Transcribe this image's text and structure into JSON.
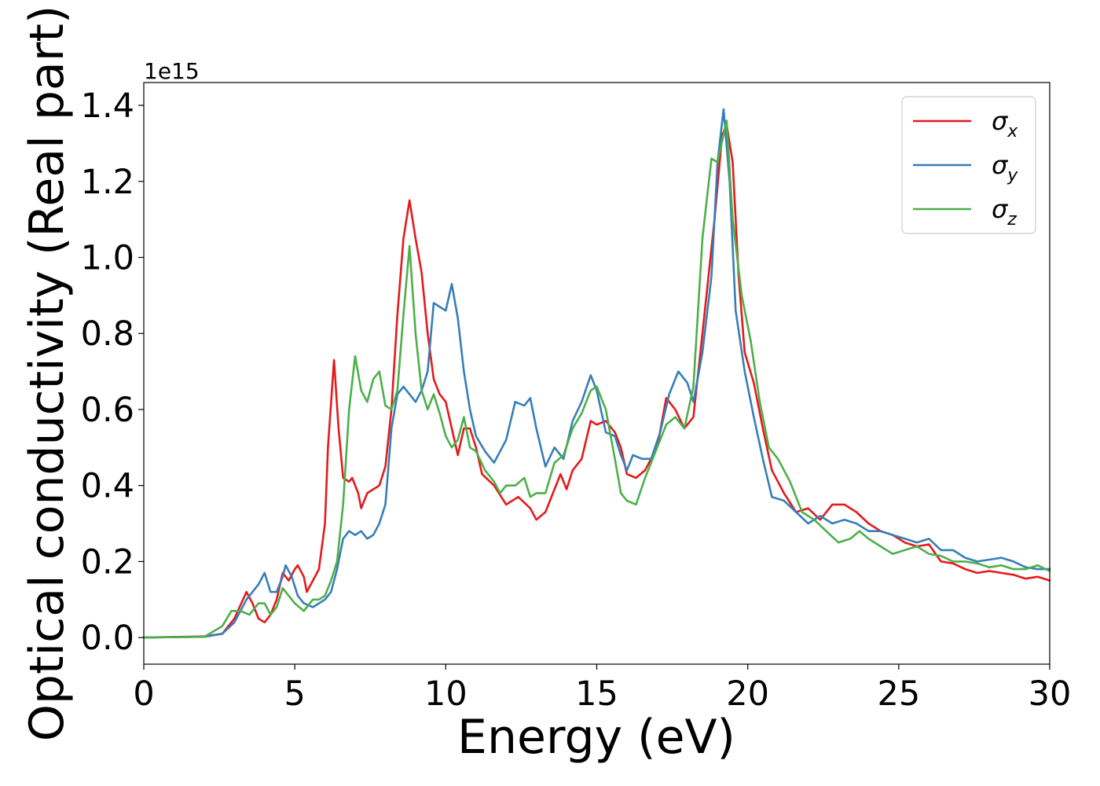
{
  "chart_data": {
    "type": "line",
    "xlabel": "Energy (eV)",
    "ylabel": "Optical conductivity (Real part)",
    "offset_text": "1e15",
    "xlim": [
      0,
      30
    ],
    "ylim": [
      -0.07,
      1.46
    ],
    "xticks": [
      0,
      5,
      10,
      15,
      20,
      25,
      30
    ],
    "xtick_labels": [
      "0",
      "5",
      "10",
      "15",
      "20",
      "25",
      "30"
    ],
    "yticks": [
      0.0,
      0.2,
      0.4,
      0.6,
      0.8,
      1.0,
      1.2,
      1.4
    ],
    "ytick_labels": [
      "0.0",
      "0.2",
      "0.4",
      "0.6",
      "0.8",
      "1.0",
      "1.2",
      "1.4"
    ],
    "legend_position": "top-right",
    "grid": false,
    "series": [
      {
        "name": "σx",
        "symbol": "σ",
        "subscript": "x",
        "color": "#e41a1c",
        "points": [
          [
            0,
            0
          ],
          [
            2,
            0.003
          ],
          [
            2.6,
            0.01
          ],
          [
            3,
            0.05
          ],
          [
            3.4,
            0.12
          ],
          [
            3.6,
            0.09
          ],
          [
            3.8,
            0.05
          ],
          [
            4,
            0.04
          ],
          [
            4.2,
            0.06
          ],
          [
            4.4,
            0.1
          ],
          [
            4.6,
            0.17
          ],
          [
            4.8,
            0.15
          ],
          [
            5,
            0.18
          ],
          [
            5.1,
            0.19
          ],
          [
            5.3,
            0.16
          ],
          [
            5.4,
            0.12
          ],
          [
            5.6,
            0.15
          ],
          [
            5.8,
            0.18
          ],
          [
            6,
            0.3
          ],
          [
            6.1,
            0.5
          ],
          [
            6.3,
            0.73
          ],
          [
            6.45,
            0.55
          ],
          [
            6.6,
            0.42
          ],
          [
            6.8,
            0.41
          ],
          [
            6.9,
            0.42
          ],
          [
            7.1,
            0.38
          ],
          [
            7.2,
            0.34
          ],
          [
            7.4,
            0.38
          ],
          [
            7.6,
            0.39
          ],
          [
            7.8,
            0.4
          ],
          [
            8,
            0.45
          ],
          [
            8.2,
            0.6
          ],
          [
            8.4,
            0.85
          ],
          [
            8.6,
            1.05
          ],
          [
            8.8,
            1.15
          ],
          [
            9,
            1.05
          ],
          [
            9.2,
            0.96
          ],
          [
            9.4,
            0.8
          ],
          [
            9.6,
            0.68
          ],
          [
            9.8,
            0.64
          ],
          [
            10,
            0.62
          ],
          [
            10.2,
            0.55
          ],
          [
            10.4,
            0.48
          ],
          [
            10.6,
            0.55
          ],
          [
            10.8,
            0.55
          ],
          [
            11,
            0.5
          ],
          [
            11.2,
            0.43
          ],
          [
            11.6,
            0.4
          ],
          [
            12,
            0.35
          ],
          [
            12.4,
            0.37
          ],
          [
            12.8,
            0.34
          ],
          [
            13,
            0.31
          ],
          [
            13.3,
            0.33
          ],
          [
            13.6,
            0.39
          ],
          [
            13.8,
            0.43
          ],
          [
            14,
            0.39
          ],
          [
            14.2,
            0.44
          ],
          [
            14.5,
            0.47
          ],
          [
            14.8,
            0.57
          ],
          [
            15,
            0.56
          ],
          [
            15.3,
            0.57
          ],
          [
            15.6,
            0.54
          ],
          [
            15.8,
            0.5
          ],
          [
            16,
            0.43
          ],
          [
            16.3,
            0.42
          ],
          [
            16.6,
            0.44
          ],
          [
            17,
            0.5
          ],
          [
            17.3,
            0.63
          ],
          [
            17.6,
            0.6
          ],
          [
            17.9,
            0.55
          ],
          [
            18.2,
            0.58
          ],
          [
            18.5,
            0.8
          ],
          [
            18.9,
            1.1
          ],
          [
            19.15,
            1.32
          ],
          [
            19.3,
            1.35
          ],
          [
            19.5,
            1.25
          ],
          [
            19.7,
            0.95
          ],
          [
            19.9,
            0.75
          ],
          [
            20.2,
            0.67
          ],
          [
            20.5,
            0.55
          ],
          [
            20.8,
            0.44
          ],
          [
            21.2,
            0.38
          ],
          [
            21.6,
            0.33
          ],
          [
            22,
            0.34
          ],
          [
            22.4,
            0.31
          ],
          [
            22.8,
            0.35
          ],
          [
            23.2,
            0.35
          ],
          [
            23.6,
            0.33
          ],
          [
            24,
            0.3
          ],
          [
            24.4,
            0.28
          ],
          [
            24.8,
            0.27
          ],
          [
            25.2,
            0.25
          ],
          [
            25.6,
            0.24
          ],
          [
            26,
            0.245
          ],
          [
            26.4,
            0.2
          ],
          [
            26.8,
            0.195
          ],
          [
            27.2,
            0.18
          ],
          [
            27.6,
            0.17
          ],
          [
            28,
            0.175
          ],
          [
            28.4,
            0.17
          ],
          [
            28.8,
            0.165
          ],
          [
            29.2,
            0.155
          ],
          [
            29.6,
            0.16
          ],
          [
            30,
            0.15
          ]
        ]
      },
      {
        "name": "σy",
        "symbol": "σ",
        "subscript": "y",
        "color": "#377eb8",
        "points": [
          [
            0,
            0
          ],
          [
            2,
            0.002
          ],
          [
            2.6,
            0.01
          ],
          [
            3,
            0.04
          ],
          [
            3.4,
            0.1
          ],
          [
            3.6,
            0.12
          ],
          [
            3.8,
            0.14
          ],
          [
            4,
            0.17
          ],
          [
            4.2,
            0.12
          ],
          [
            4.4,
            0.12
          ],
          [
            4.6,
            0.16
          ],
          [
            4.7,
            0.19
          ],
          [
            4.9,
            0.16
          ],
          [
            5.1,
            0.11
          ],
          [
            5.3,
            0.09
          ],
          [
            5.6,
            0.08
          ],
          [
            5.8,
            0.09
          ],
          [
            6,
            0.1
          ],
          [
            6.2,
            0.12
          ],
          [
            6.4,
            0.18
          ],
          [
            6.6,
            0.26
          ],
          [
            6.8,
            0.28
          ],
          [
            7,
            0.27
          ],
          [
            7.2,
            0.28
          ],
          [
            7.4,
            0.26
          ],
          [
            7.6,
            0.27
          ],
          [
            7.8,
            0.3
          ],
          [
            8,
            0.35
          ],
          [
            8.2,
            0.55
          ],
          [
            8.4,
            0.64
          ],
          [
            8.6,
            0.66
          ],
          [
            8.8,
            0.64
          ],
          [
            9,
            0.62
          ],
          [
            9.2,
            0.65
          ],
          [
            9.4,
            0.7
          ],
          [
            9.6,
            0.88
          ],
          [
            9.8,
            0.87
          ],
          [
            10,
            0.86
          ],
          [
            10.2,
            0.93
          ],
          [
            10.4,
            0.84
          ],
          [
            10.6,
            0.7
          ],
          [
            10.8,
            0.6
          ],
          [
            11,
            0.53
          ],
          [
            11.3,
            0.49
          ],
          [
            11.6,
            0.46
          ],
          [
            11.8,
            0.49
          ],
          [
            12,
            0.52
          ],
          [
            12.3,
            0.62
          ],
          [
            12.6,
            0.61
          ],
          [
            12.8,
            0.63
          ],
          [
            13,
            0.55
          ],
          [
            13.3,
            0.45
          ],
          [
            13.6,
            0.5
          ],
          [
            13.9,
            0.47
          ],
          [
            14.2,
            0.57
          ],
          [
            14.5,
            0.62
          ],
          [
            14.8,
            0.69
          ],
          [
            15,
            0.65
          ],
          [
            15.3,
            0.54
          ],
          [
            15.6,
            0.53
          ],
          [
            15.8,
            0.48
          ],
          [
            16,
            0.44
          ],
          [
            16.2,
            0.48
          ],
          [
            16.5,
            0.47
          ],
          [
            16.8,
            0.47
          ],
          [
            17.1,
            0.54
          ],
          [
            17.4,
            0.64
          ],
          [
            17.7,
            0.7
          ],
          [
            18,
            0.67
          ],
          [
            18.2,
            0.62
          ],
          [
            18.5,
            0.75
          ],
          [
            18.8,
            0.95
          ],
          [
            19,
            1.25
          ],
          [
            19.2,
            1.39
          ],
          [
            19.4,
            1.2
          ],
          [
            19.6,
            0.86
          ],
          [
            19.9,
            0.7
          ],
          [
            20.2,
            0.58
          ],
          [
            20.5,
            0.47
          ],
          [
            20.8,
            0.37
          ],
          [
            21.2,
            0.36
          ],
          [
            21.6,
            0.33
          ],
          [
            22,
            0.3
          ],
          [
            22.4,
            0.32
          ],
          [
            22.8,
            0.3
          ],
          [
            23.2,
            0.31
          ],
          [
            23.6,
            0.3
          ],
          [
            24,
            0.28
          ],
          [
            24.4,
            0.28
          ],
          [
            24.8,
            0.27
          ],
          [
            25.2,
            0.26
          ],
          [
            25.6,
            0.25
          ],
          [
            26,
            0.26
          ],
          [
            26.4,
            0.23
          ],
          [
            26.8,
            0.23
          ],
          [
            27.2,
            0.21
          ],
          [
            27.6,
            0.2
          ],
          [
            28,
            0.205
          ],
          [
            28.4,
            0.21
          ],
          [
            28.8,
            0.2
          ],
          [
            29.2,
            0.185
          ],
          [
            29.6,
            0.18
          ],
          [
            30,
            0.18
          ]
        ]
      },
      {
        "name": "σz",
        "symbol": "σ",
        "subscript": "z",
        "color": "#4daf4a",
        "points": [
          [
            0,
            0
          ],
          [
            2,
            0.002
          ],
          [
            2.6,
            0.03
          ],
          [
            2.9,
            0.07
          ],
          [
            3.2,
            0.07
          ],
          [
            3.5,
            0.06
          ],
          [
            3.8,
            0.09
          ],
          [
            4,
            0.09
          ],
          [
            4.2,
            0.06
          ],
          [
            4.4,
            0.08
          ],
          [
            4.6,
            0.13
          ],
          [
            4.8,
            0.11
          ],
          [
            5,
            0.09
          ],
          [
            5.3,
            0.07
          ],
          [
            5.6,
            0.1
          ],
          [
            5.8,
            0.1
          ],
          [
            6,
            0.11
          ],
          [
            6.2,
            0.15
          ],
          [
            6.4,
            0.2
          ],
          [
            6.6,
            0.35
          ],
          [
            6.8,
            0.6
          ],
          [
            7,
            0.74
          ],
          [
            7.2,
            0.65
          ],
          [
            7.4,
            0.62
          ],
          [
            7.6,
            0.68
          ],
          [
            7.8,
            0.7
          ],
          [
            8,
            0.61
          ],
          [
            8.2,
            0.6
          ],
          [
            8.4,
            0.65
          ],
          [
            8.6,
            0.85
          ],
          [
            8.8,
            1.03
          ],
          [
            9,
            0.8
          ],
          [
            9.2,
            0.65
          ],
          [
            9.4,
            0.6
          ],
          [
            9.6,
            0.64
          ],
          [
            9.8,
            0.59
          ],
          [
            10,
            0.53
          ],
          [
            10.2,
            0.5
          ],
          [
            10.4,
            0.52
          ],
          [
            10.6,
            0.58
          ],
          [
            10.8,
            0.5
          ],
          [
            11,
            0.49
          ],
          [
            11.3,
            0.44
          ],
          [
            11.6,
            0.41
          ],
          [
            11.8,
            0.38
          ],
          [
            12,
            0.4
          ],
          [
            12.3,
            0.4
          ],
          [
            12.6,
            0.42
          ],
          [
            12.8,
            0.37
          ],
          [
            13,
            0.38
          ],
          [
            13.3,
            0.38
          ],
          [
            13.6,
            0.46
          ],
          [
            13.9,
            0.48
          ],
          [
            14.2,
            0.55
          ],
          [
            14.5,
            0.59
          ],
          [
            14.8,
            0.65
          ],
          [
            15,
            0.66
          ],
          [
            15.3,
            0.6
          ],
          [
            15.6,
            0.47
          ],
          [
            15.8,
            0.38
          ],
          [
            16,
            0.36
          ],
          [
            16.3,
            0.35
          ],
          [
            16.6,
            0.42
          ],
          [
            17,
            0.5
          ],
          [
            17.3,
            0.56
          ],
          [
            17.6,
            0.58
          ],
          [
            17.9,
            0.55
          ],
          [
            18.2,
            0.66
          ],
          [
            18.5,
            1.05
          ],
          [
            18.8,
            1.26
          ],
          [
            19,
            1.25
          ],
          [
            19.3,
            1.36
          ],
          [
            19.5,
            1.1
          ],
          [
            19.8,
            0.9
          ],
          [
            20.1,
            0.78
          ],
          [
            20.4,
            0.62
          ],
          [
            20.7,
            0.5
          ],
          [
            21,
            0.47
          ],
          [
            21.4,
            0.41
          ],
          [
            21.8,
            0.33
          ],
          [
            22.2,
            0.31
          ],
          [
            22.6,
            0.28
          ],
          [
            23,
            0.25
          ],
          [
            23.4,
            0.26
          ],
          [
            23.7,
            0.28
          ],
          [
            24,
            0.26
          ],
          [
            24.4,
            0.24
          ],
          [
            24.8,
            0.22
          ],
          [
            25.2,
            0.23
          ],
          [
            25.6,
            0.24
          ],
          [
            26,
            0.22
          ],
          [
            26.4,
            0.215
          ],
          [
            26.8,
            0.2
          ],
          [
            27.2,
            0.2
          ],
          [
            27.6,
            0.195
          ],
          [
            28,
            0.185
          ],
          [
            28.4,
            0.19
          ],
          [
            28.8,
            0.18
          ],
          [
            29.2,
            0.18
          ],
          [
            29.6,
            0.19
          ],
          [
            30,
            0.175
          ]
        ]
      }
    ]
  }
}
